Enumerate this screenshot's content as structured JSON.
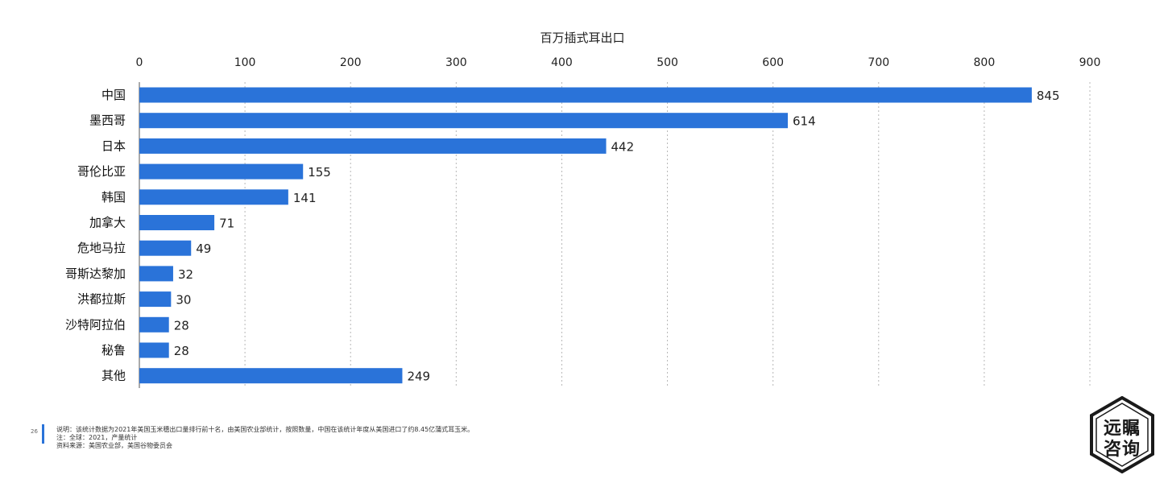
{
  "chart_data": {
    "type": "bar",
    "orientation": "horizontal",
    "title": "百万插式耳出口",
    "categories": [
      "中国",
      "墨西哥",
      "日本",
      "哥伦比亚",
      "韩国",
      "加拿大",
      "危地马拉",
      "哥斯达黎加",
      "洪都拉斯",
      "沙特阿拉伯",
      "秘鲁",
      "其他"
    ],
    "values": [
      845,
      614,
      442,
      155,
      141,
      71,
      49,
      32,
      30,
      28,
      28,
      249
    ],
    "xlim": [
      0,
      900
    ],
    "ticks": [
      "0",
      "100",
      "200",
      "300",
      "400",
      "500",
      "600",
      "700",
      "800",
      "900"
    ],
    "grid": true,
    "axis_position": "top",
    "bar_color": "#2a73d9"
  },
  "footer": {
    "page_number": "26",
    "notes": [
      "说明：该统计数据为2021年美国玉米穗出口量排行前十名，由美国农业部统计，按照数量，中国在该统计年度从美国进口了约8.45亿蒲式耳玉米。",
      "注：全球：2021，产量统计",
      "资料来源：美国农业部，美国谷物委员会"
    ]
  },
  "logo": {
    "line1": "远瞩",
    "line2": "咨询"
  }
}
